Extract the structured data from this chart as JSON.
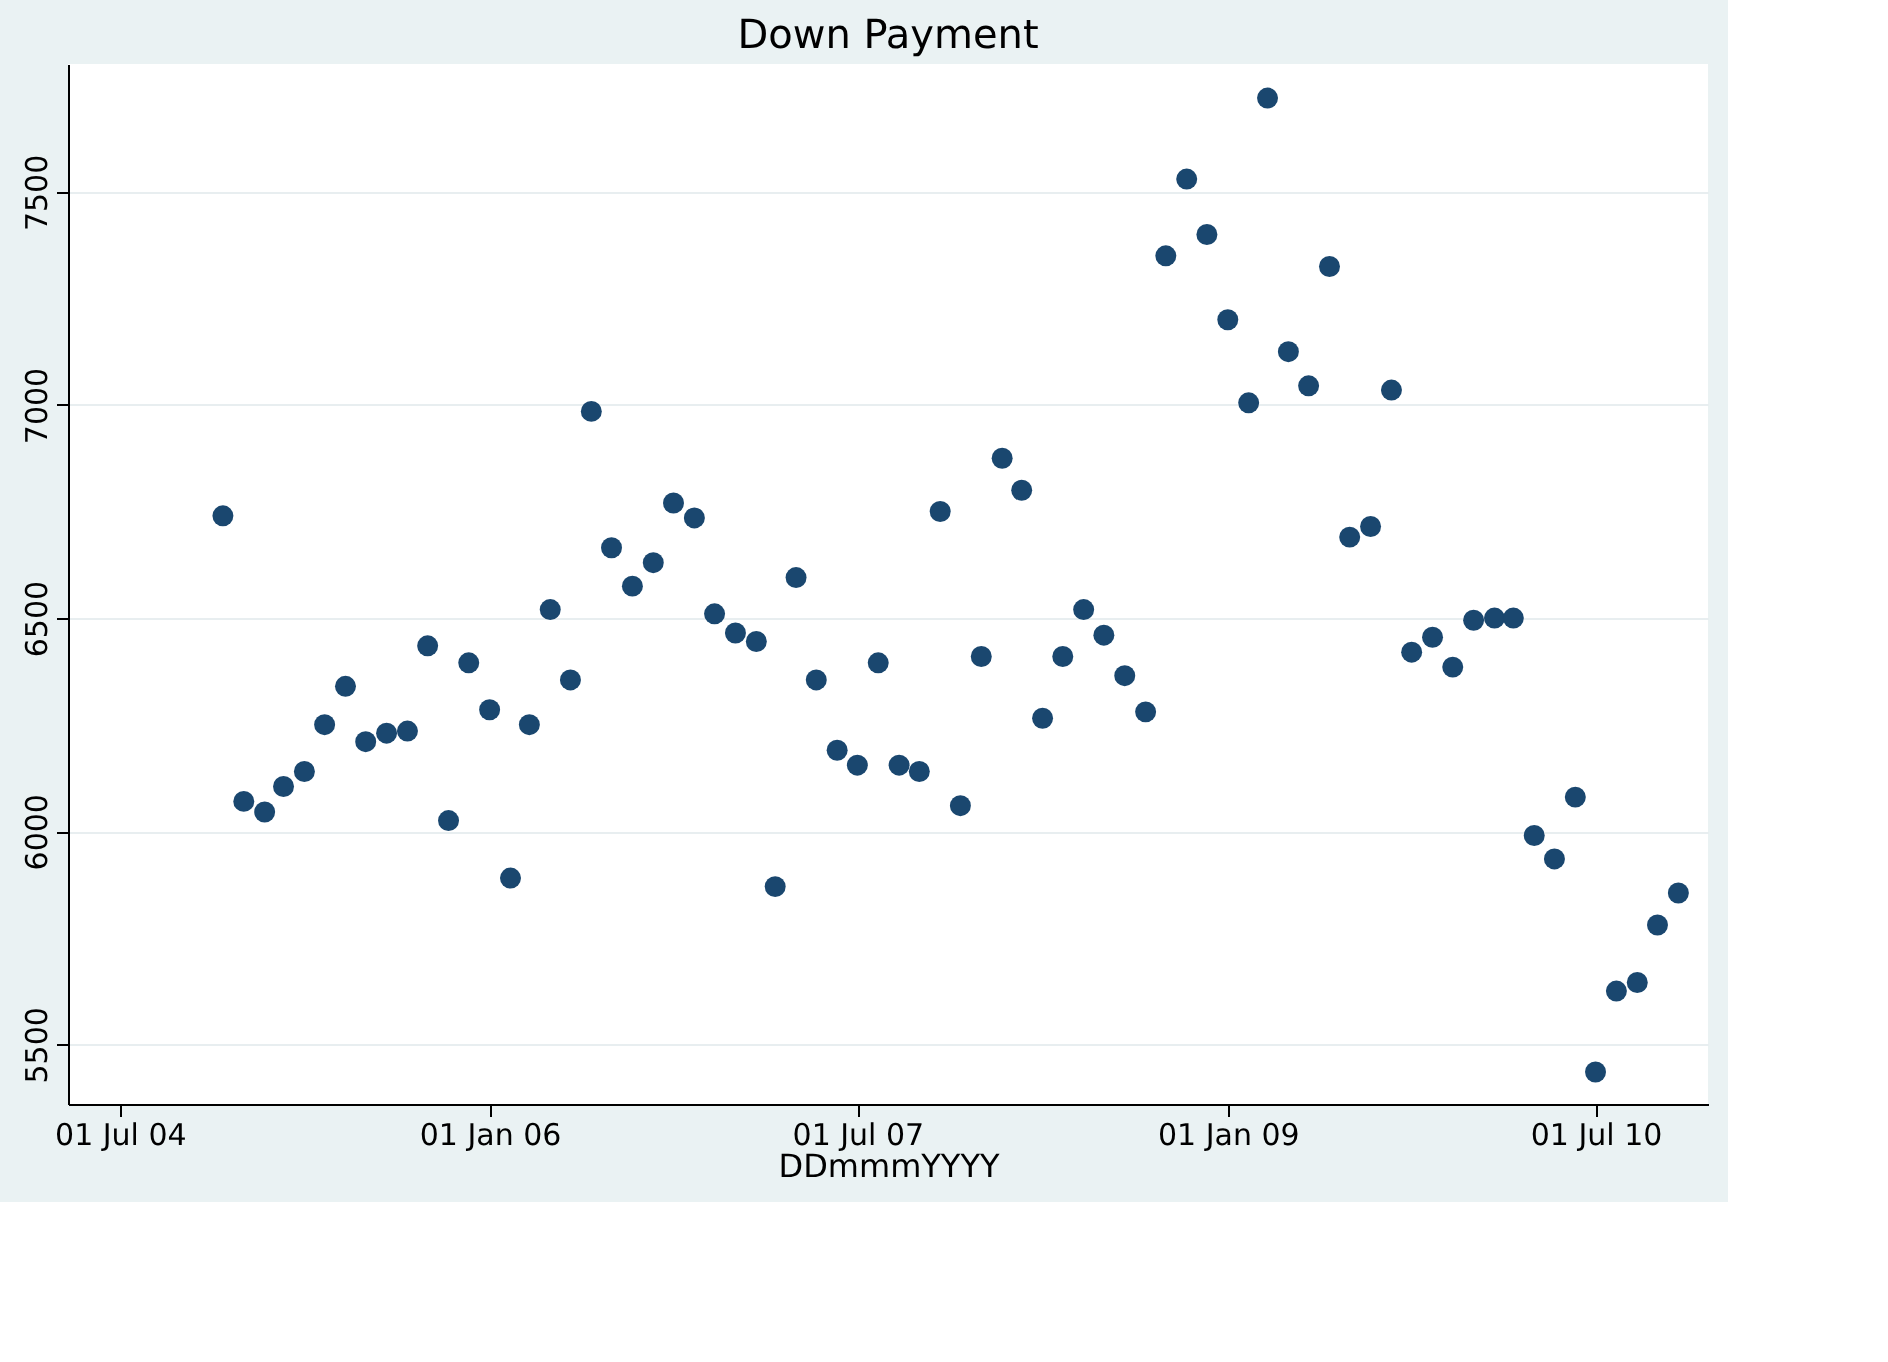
{
  "chart_data": {
    "type": "scatter",
    "title": "Down Payment",
    "xlabel": "DDmmmYYYY",
    "marker": "circle",
    "grid": "y",
    "legend": false,
    "x": [
      "2004-12",
      "2005-01",
      "2005-02",
      "2005-03",
      "2005-04",
      "2005-05",
      "2005-06",
      "2005-07",
      "2005-08",
      "2005-09",
      "2005-10",
      "2005-11",
      "2005-12",
      "2006-01",
      "2006-02",
      "2006-03",
      "2006-04",
      "2006-05",
      "2006-06",
      "2006-07",
      "2006-08",
      "2006-09",
      "2006-10",
      "2006-11",
      "2006-12",
      "2007-01",
      "2007-02",
      "2007-03",
      "2007-04",
      "2007-05",
      "2007-06",
      "2007-07",
      "2007-08",
      "2007-09",
      "2007-10",
      "2007-11",
      "2007-12",
      "2008-01",
      "2008-02",
      "2008-03",
      "2008-04",
      "2008-05",
      "2008-06",
      "2008-07",
      "2008-08",
      "2008-09",
      "2008-10",
      "2008-11",
      "2008-12",
      "2009-01",
      "2009-02",
      "2009-03",
      "2009-04",
      "2009-05",
      "2009-06",
      "2009-07",
      "2009-08",
      "2009-09",
      "2009-10",
      "2009-11",
      "2009-12",
      "2010-01",
      "2010-02",
      "2010-03",
      "2010-04",
      "2010-05",
      "2010-06",
      "2010-07",
      "2010-08",
      "2010-09",
      "2010-10",
      "2010-11"
    ],
    "series": [
      {
        "color": "#1a476f",
        "values": [
          6740,
          6070,
          6045,
          6105,
          6140,
          6250,
          6340,
          6210,
          6230,
          6235,
          6435,
          6025,
          6395,
          6285,
          5890,
          6250,
          6520,
          6355,
          6985,
          6665,
          6575,
          6630,
          6770,
          6735,
          6510,
          6465,
          6445,
          5870,
          6595,
          6355,
          6190,
          6155,
          6395,
          6155,
          6140,
          6750,
          6060,
          6410,
          6875,
          6800,
          6265,
          6410,
          6520,
          6460,
          6365,
          6280,
          7350,
          7530,
          7400,
          7200,
          7005,
          7720,
          7125,
          7045,
          7325,
          6690,
          6715,
          7035,
          6420,
          6455,
          6385,
          6495,
          6500,
          6500,
          5990,
          5935,
          6080,
          5435,
          5625,
          5645,
          5780,
          5855
        ]
      }
    ],
    "xlim": [
      "2004-04-15",
      "2010-12-15"
    ],
    "xticks": [
      {
        "value": "2004-07-01",
        "label": "01 Jul 04"
      },
      {
        "value": "2006-01-01",
        "label": "01 Jan 06"
      },
      {
        "value": "2007-07-01",
        "label": "01 Jul 07"
      },
      {
        "value": "2009-01-01",
        "label": "01 Jan 09"
      },
      {
        "value": "2010-07-01",
        "label": "01 Jul 10"
      }
    ],
    "ylim": [
      5360,
      7800
    ],
    "yticks": [
      5500,
      6000,
      6500,
      7000,
      7500
    ]
  }
}
